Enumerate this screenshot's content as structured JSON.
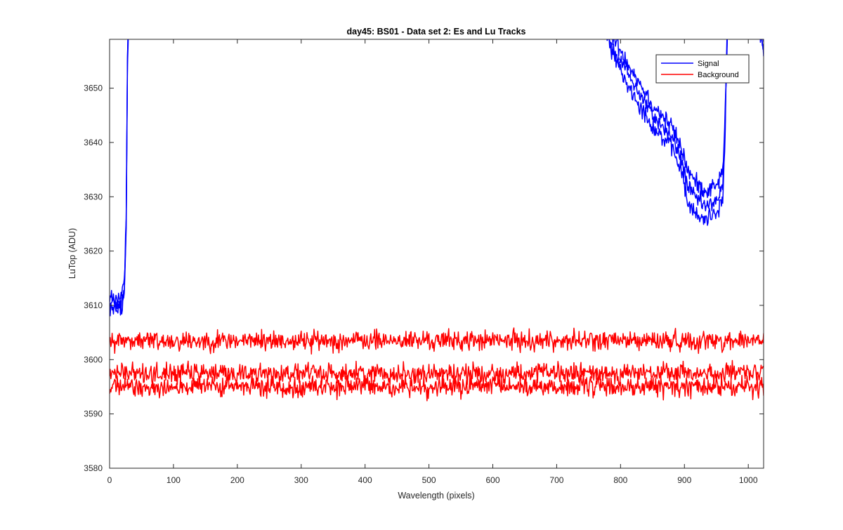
{
  "chart_data": {
    "type": "line",
    "title": "day45: BS01 - Data set 2: Es and Lu Tracks",
    "xlabel": "Wavelength (pixels)",
    "ylabel": "LuTop (ADU)",
    "xlim": [
      0,
      1024
    ],
    "ylim": [
      3580,
      3659
    ],
    "xticks": [
      0,
      100,
      200,
      300,
      400,
      500,
      600,
      700,
      800,
      900,
      1000
    ],
    "yticks": [
      3580,
      3590,
      3600,
      3610,
      3620,
      3630,
      3640,
      3650
    ],
    "grid": false,
    "legend_position": "top-right",
    "legend": [
      {
        "label": "Signal",
        "color": "#0000ff"
      },
      {
        "label": "Background",
        "color": "#ff0000"
      }
    ],
    "series": [
      {
        "name": "Signal",
        "color": "#0000ff",
        "noise": 1.4,
        "segments": [
          {
            "x": [
              0,
              5,
              12,
              18,
              22,
              24,
              26,
              27,
              28,
              30
            ],
            "y": [
              3610,
              3610.5,
              3610,
              3610,
              3612,
              3616,
              3625,
              3640,
              3655,
              3665
            ]
          },
          {
            "x": [
              765,
              775,
              790,
              805,
              820,
              835,
              850,
              865,
              880,
              895,
              905,
              915,
              925,
              935,
              945,
              955,
              960,
              963,
              966,
              968
            ],
            "y": [
              3665,
              3661,
              3657,
              3654,
              3651,
              3648,
              3645,
              3643,
              3641,
              3637,
              3632,
              3630,
              3629,
              3628,
              3629,
              3630,
              3632,
              3640,
              3655,
              3665
            ]
          },
          {
            "x": [
              1015,
              1020,
              1024
            ],
            "y": [
              3665,
              3660,
              3658
            ]
          }
        ]
      },
      {
        "name": "Signal",
        "color": "#0000ff",
        "noise": 1.4,
        "segments": [
          {
            "x": [
              0,
              5,
              12,
              18,
              22,
              24,
              26,
              27,
              28,
              30
            ],
            "y": [
              3611,
              3611.5,
              3611,
              3611,
              3613,
              3617,
              3626,
              3641,
              3656,
              3666
            ]
          },
          {
            "x": [
              765,
              775,
              790,
              805,
              820,
              835,
              850,
              865,
              880,
              895,
              905,
              915,
              925,
              935,
              945,
              955,
              960,
              963,
              966,
              968
            ],
            "y": [
              3666,
              3662,
              3659,
              3656,
              3653,
              3650,
              3647,
              3645,
              3643,
              3639,
              3635,
              3633,
              3632,
              3631,
              3632,
              3633,
              3635,
              3642,
              3656,
              3666
            ]
          },
          {
            "x": [
              1015,
              1020,
              1024
            ],
            "y": [
              3666,
              3661,
              3659
            ]
          }
        ]
      },
      {
        "name": "Signal",
        "color": "#0000ff",
        "noise": 1.4,
        "segments": [
          {
            "x": [
              0,
              5,
              12,
              18,
              22,
              24,
              26,
              27,
              28,
              30
            ],
            "y": [
              3609,
              3609.5,
              3609,
              3609.5,
              3611,
              3615,
              3624,
              3639,
              3654,
              3664
            ]
          },
          {
            "x": [
              765,
              775,
              790,
              805,
              820,
              835,
              850,
              865,
              880,
              895,
              905,
              915,
              925,
              935,
              945,
              955,
              960,
              963,
              966,
              968
            ],
            "y": [
              3664,
              3660,
              3656,
              3652,
              3649,
              3646,
              3643,
              3641,
              3639,
              3635,
              3629,
              3627,
              3626,
              3626,
              3627,
              3628,
              3630,
              3638,
              3653,
              3664
            ]
          },
          {
            "x": [
              1015,
              1020,
              1024
            ],
            "y": [
              3664,
              3659,
              3656
            ]
          }
        ]
      },
      {
        "name": "Background",
        "color": "#ff0000",
        "noise": 1.6,
        "segments": [
          {
            "x": [
              0,
              1024
            ],
            "y": [
              3603.5,
              3603.5
            ]
          }
        ]
      },
      {
        "name": "Background",
        "color": "#ff0000",
        "noise": 1.6,
        "segments": [
          {
            "x": [
              0,
              1024
            ],
            "y": [
              3597.5,
              3597.5
            ]
          }
        ]
      },
      {
        "name": "Background",
        "color": "#ff0000",
        "noise": 1.6,
        "segments": [
          {
            "x": [
              0,
              1024
            ],
            "y": [
              3595.0,
              3595.0
            ]
          }
        ]
      }
    ]
  }
}
